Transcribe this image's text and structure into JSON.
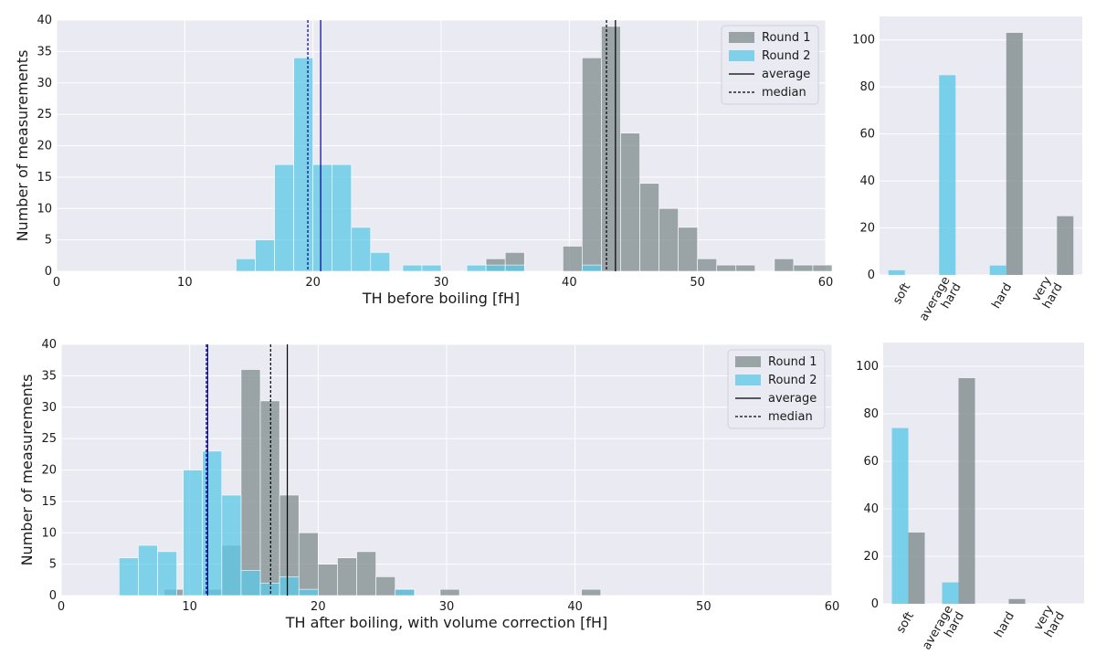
{
  "colors": {
    "round1": "#7f8c8d",
    "round2": "#5bc8e6",
    "panel_bg": "#eaeaf2",
    "grid": "#ffffff",
    "round1_line": "#000000",
    "round2_line": "#00008b"
  },
  "chart_data": [
    {
      "id": "hist-before",
      "type": "bar",
      "subtype": "histogram",
      "xlabel": "TH before boiling [fH]",
      "ylabel": "Number of measurements",
      "xlim": [
        0,
        60
      ],
      "ylim": [
        0,
        40
      ],
      "xticks": [
        0,
        10,
        20,
        30,
        40,
        50,
        60
      ],
      "yticks": [
        0,
        5,
        10,
        15,
        20,
        25,
        30,
        35,
        40
      ],
      "bin_width": 1.5,
      "series": [
        {
          "name": "Round 1",
          "bins": [
            [
              32,
              0
            ],
            [
              33.5,
              2
            ],
            [
              35,
              3
            ],
            [
              39.5,
              4
            ],
            [
              41,
              34
            ],
            [
              42.5,
              39
            ],
            [
              44,
              22
            ],
            [
              45.5,
              14
            ],
            [
              47,
              10
            ],
            [
              48.5,
              7
            ],
            [
              50,
              2
            ],
            [
              51.5,
              1
            ],
            [
              53,
              1
            ],
            [
              54.5,
              0
            ],
            [
              56,
              2
            ],
            [
              57.5,
              1
            ],
            [
              59,
              1
            ]
          ]
        },
        {
          "name": "Round 2",
          "bins": [
            [
              14,
              2
            ],
            [
              15.5,
              5
            ],
            [
              17,
              17
            ],
            [
              18.5,
              34
            ],
            [
              20,
              17
            ],
            [
              21.5,
              17
            ],
            [
              23,
              7
            ],
            [
              24.5,
              3
            ],
            [
              26,
              0
            ],
            [
              27,
              1
            ],
            [
              28.5,
              1
            ],
            [
              32,
              1
            ],
            [
              33.5,
              1
            ],
            [
              35,
              1
            ],
            [
              41,
              1
            ]
          ]
        }
      ],
      "lines": [
        {
          "series": "Round 1",
          "kind": "average",
          "x": 43.6
        },
        {
          "series": "Round 1",
          "kind": "median",
          "x": 42.9
        },
        {
          "series": "Round 2",
          "kind": "average",
          "x": 20.6
        },
        {
          "series": "Round 2",
          "kind": "median",
          "x": 19.6
        }
      ],
      "legend": {
        "position": "top-right",
        "entries": [
          "Round 1",
          "Round 2",
          "average",
          "median"
        ]
      }
    },
    {
      "id": "cat-before",
      "type": "bar",
      "categories": [
        "soft",
        "average hard",
        "hard",
        "very hard"
      ],
      "ylim": [
        0,
        110
      ],
      "yticks": [
        0,
        20,
        40,
        60,
        80,
        100
      ],
      "series": [
        {
          "name": "Round 2",
          "values": [
            2,
            85,
            4,
            0
          ]
        },
        {
          "name": "Round 1",
          "values": [
            0,
            0,
            103,
            25
          ]
        }
      ]
    },
    {
      "id": "hist-after",
      "type": "bar",
      "subtype": "histogram",
      "xlabel": "TH after boiling, with volume correction [fH]",
      "ylabel": "Number of measurements",
      "xlim": [
        0,
        60
      ],
      "ylim": [
        0,
        40
      ],
      "xticks": [
        0,
        10,
        20,
        30,
        40,
        50,
        60
      ],
      "yticks": [
        0,
        5,
        10,
        15,
        20,
        25,
        30,
        35,
        40
      ],
      "bin_width": 1.5,
      "series": [
        {
          "name": "Round 1",
          "bins": [
            [
              8,
              1
            ],
            [
              9.5,
              0
            ],
            [
              11,
              1
            ],
            [
              12.5,
              8
            ],
            [
              14,
              36
            ],
            [
              15.5,
              31
            ],
            [
              17,
              16
            ],
            [
              18.5,
              10
            ],
            [
              20,
              5
            ],
            [
              21.5,
              6
            ],
            [
              23,
              7
            ],
            [
              24.5,
              3
            ],
            [
              26,
              1
            ],
            [
              29.5,
              1
            ],
            [
              40.5,
              1
            ]
          ]
        },
        {
          "name": "Round 2",
          "bins": [
            [
              4.5,
              6
            ],
            [
              6,
              8
            ],
            [
              7.5,
              7
            ],
            [
              9.5,
              20
            ],
            [
              11,
              23
            ],
            [
              12.5,
              16
            ],
            [
              14,
              4
            ],
            [
              15.5,
              2
            ],
            [
              17,
              3
            ],
            [
              18.5,
              1
            ],
            [
              26,
              1
            ]
          ]
        }
      ],
      "lines": [
        {
          "series": "Round 1",
          "kind": "average",
          "x": 17.6
        },
        {
          "series": "Round 1",
          "kind": "median",
          "x": 16.3
        },
        {
          "series": "Round 2",
          "kind": "average",
          "x": 11.4
        },
        {
          "series": "Round 2",
          "kind": "median",
          "x": 11.3
        }
      ],
      "legend": {
        "position": "top-right",
        "entries": [
          "Round 1",
          "Round 2",
          "average",
          "median"
        ]
      }
    },
    {
      "id": "cat-after",
      "type": "bar",
      "categories": [
        "soft",
        "average hard",
        "hard",
        "very hard"
      ],
      "ylim": [
        0,
        110
      ],
      "yticks": [
        0,
        20,
        40,
        60,
        80,
        100
      ],
      "series": [
        {
          "name": "Round 2",
          "values": [
            74,
            9,
            0,
            0
          ]
        },
        {
          "name": "Round 1",
          "values": [
            30,
            95,
            2,
            0
          ]
        }
      ]
    }
  ]
}
